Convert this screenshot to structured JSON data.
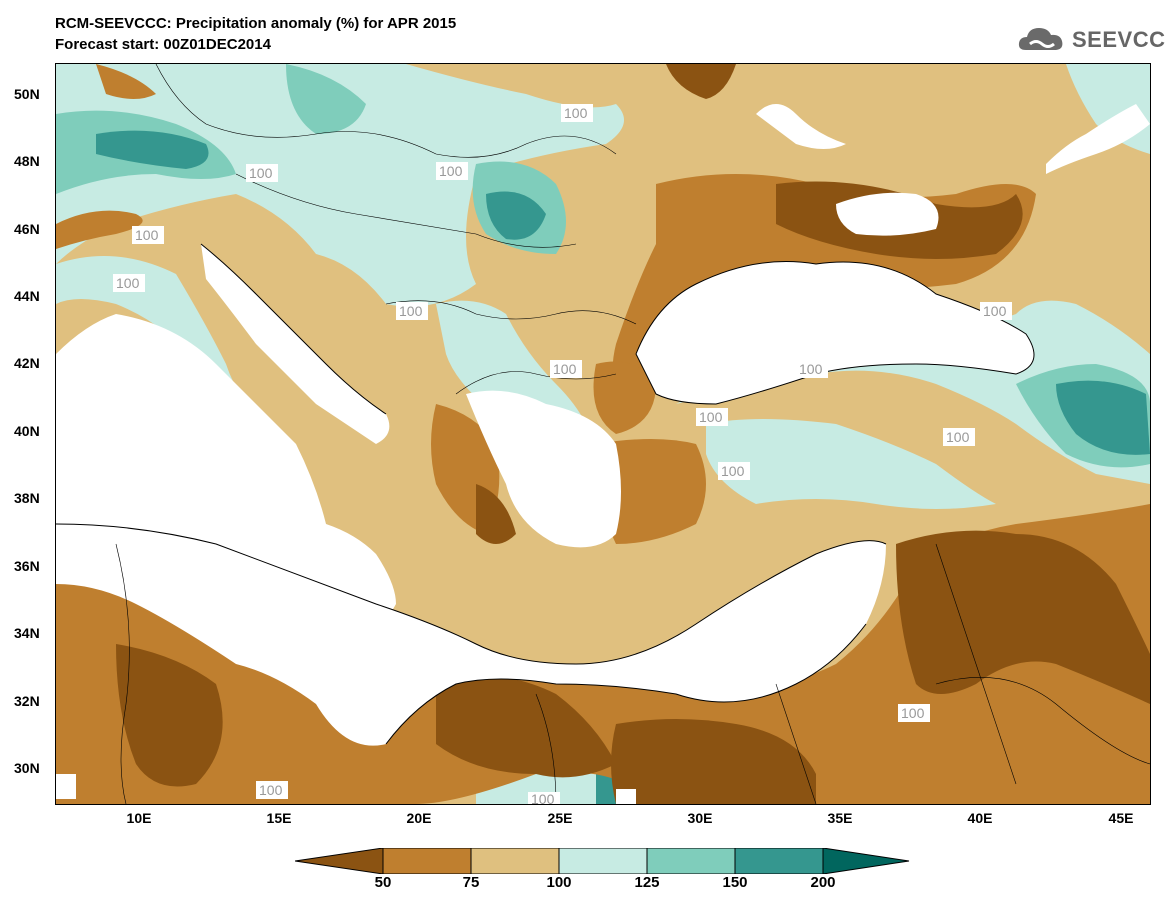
{
  "title": {
    "line1": "RCM-SEEVCCC: Precipitation anomaly (%) for APR 2015",
    "line2": "Forecast start: 00Z01DEC2014"
  },
  "logo": {
    "text": "SEEVCCC",
    "icon": "cloud-logo-icon"
  },
  "map": {
    "lat_labels": [
      "50N",
      "48N",
      "46N",
      "44N",
      "42N",
      "40N",
      "38N",
      "36N",
      "34N",
      "32N",
      "30N"
    ],
    "lon_labels": [
      "10E",
      "15E",
      "20E",
      "25E",
      "30E",
      "35E",
      "40E",
      "45E"
    ],
    "contour_label": "100",
    "lat_range": [
      29,
      51
    ],
    "lon_range": [
      7,
      46
    ]
  },
  "colorbar": {
    "labels": [
      "50",
      "75",
      "100",
      "125",
      "150",
      "200"
    ],
    "colors": [
      "#8b5312",
      "#bf7f2f",
      "#dfc07f",
      "#c7ebe3",
      "#7fcdbb",
      "#35978f",
      "#01665e"
    ]
  }
}
